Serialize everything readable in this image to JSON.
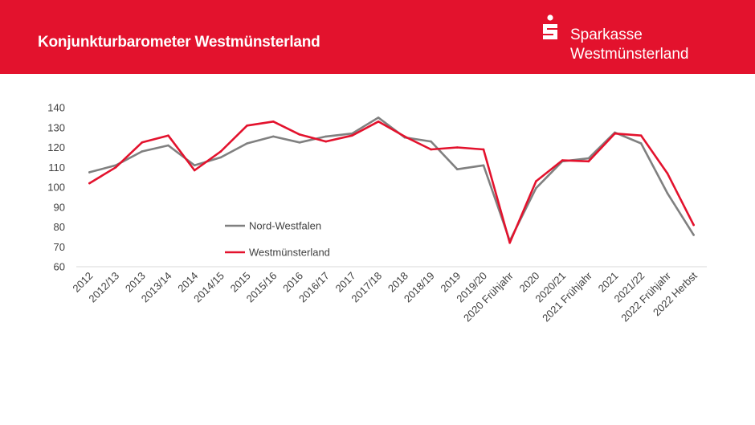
{
  "header": {
    "title": "Konjunkturbarometer Westmünsterland",
    "brand_line1": "Sparkasse",
    "brand_line2": "Westmünsterland",
    "logo_icon": "sparkasse-s-icon",
    "bar_color": "#e3122d"
  },
  "chart_data": {
    "type": "line",
    "title": "",
    "xlabel": "",
    "ylabel": "",
    "ylim": [
      60,
      140
    ],
    "yticks": [
      60,
      70,
      80,
      90,
      100,
      110,
      120,
      130,
      140
    ],
    "grid": false,
    "legend_position": "center-left",
    "categories": [
      "2012",
      "2012/13",
      "2013",
      "2013/14",
      "2014",
      "2014/15",
      "2015",
      "2015/16",
      "2016",
      "2016/17",
      "2017",
      "2017/18",
      "2018",
      "2018/19",
      "2019",
      "2019/20",
      "2020 Frühjahr",
      "2020",
      "2020/21",
      "2021 Frühjahr",
      "2021",
      "2021/22",
      "2022 Frühjahr",
      "2022 Herbst"
    ],
    "series": [
      {
        "name": "Nord-Westfalen",
        "color": "#808080",
        "values": [
          107.5,
          111,
          118,
          121,
          111,
          115,
          122,
          125.5,
          122.5,
          125.5,
          127,
          135,
          125,
          123,
          109,
          111,
          73,
          99.5,
          113,
          114.5,
          127.5,
          122,
          97,
          76
        ]
      },
      {
        "name": "Westmünsterland",
        "color": "#e3122d",
        "values": [
          102,
          110,
          122.5,
          126,
          108.5,
          118,
          131,
          133,
          126.5,
          123,
          126,
          133,
          125.5,
          119,
          120,
          119,
          72,
          103,
          113.5,
          113,
          127,
          126,
          107,
          81
        ]
      }
    ]
  }
}
